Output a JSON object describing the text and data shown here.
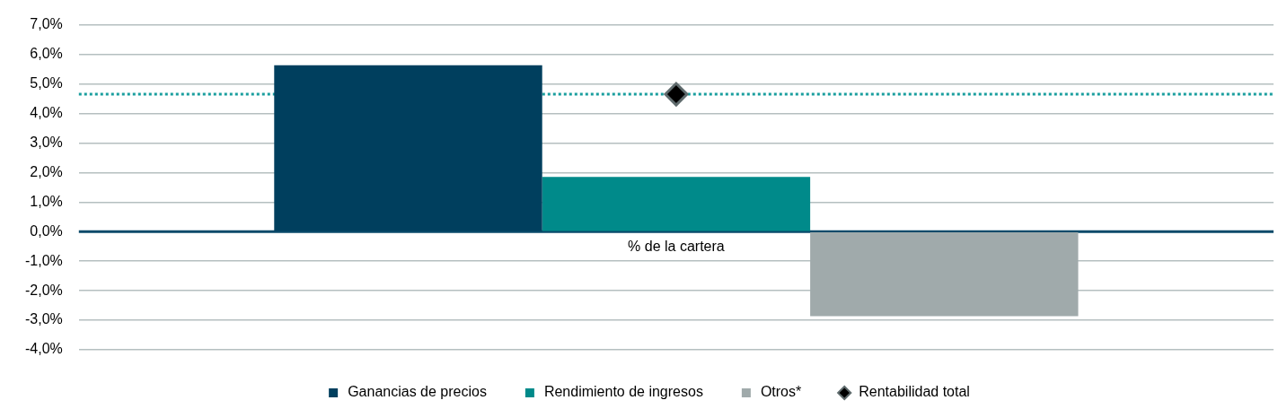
{
  "chart_data": {
    "type": "bar",
    "categories": [
      "% de la cartera"
    ],
    "series": [
      {
        "name": "Ganancias de precios",
        "color": "#003f5e",
        "values": [
          5.63
        ]
      },
      {
        "name": "Rendimiento de ingresos",
        "color": "#008a8a",
        "values": [
          1.85
        ]
      },
      {
        "name": "Otros*",
        "color": "#a0aaab",
        "values": [
          -2.86
        ]
      },
      {
        "name": "Rentabilidad total",
        "type": "line",
        "color": "#000000",
        "values": [
          4.65
        ]
      }
    ],
    "ylim": [
      -4,
      7
    ],
    "yticks": [
      {
        "value": -4,
        "label": "-4,0%"
      },
      {
        "value": -3,
        "label": "-3,0%"
      },
      {
        "value": -2,
        "label": "-2,0%"
      },
      {
        "value": -1,
        "label": "-1,0%"
      },
      {
        "value": 0,
        "label": "0,0%"
      },
      {
        "value": 1,
        "label": "1,0%"
      },
      {
        "value": 2,
        "label": "2,0%"
      },
      {
        "value": 3,
        "label": "3,0%"
      },
      {
        "value": 4,
        "label": "4,0%"
      },
      {
        "value": 5,
        "label": "5,0%"
      },
      {
        "value": 6,
        "label": "6,0%"
      },
      {
        "value": 7,
        "label": "7,0%"
      }
    ],
    "ref_lines": [
      {
        "axis": "y",
        "value": 0,
        "color": "#0a4a6a",
        "line_style": "solid"
      },
      {
        "axis": "y",
        "value": 4.65,
        "color": "#1a9e9e",
        "line_style": "dotted"
      }
    ],
    "grid": "y",
    "legend": "bottom",
    "marker": "diamond"
  }
}
